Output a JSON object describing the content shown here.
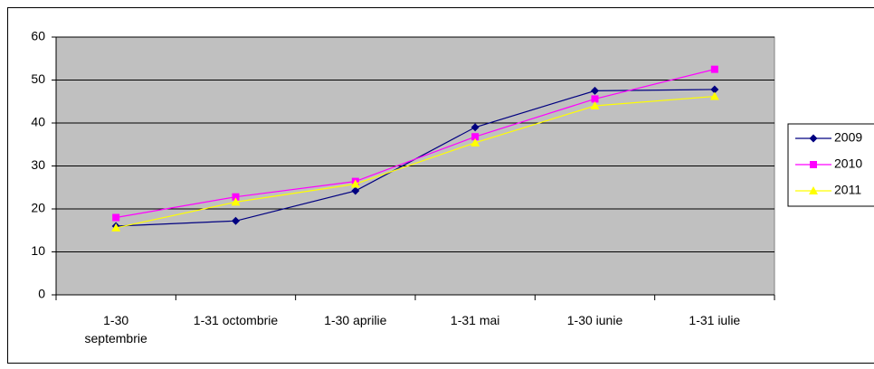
{
  "chart_data": {
    "type": "line",
    "categories": [
      "1-30 septembrie",
      "1-31 octombrie",
      "1-30 aprilie",
      "1-31 mai",
      "1-30 iunie",
      "1-31 iulie"
    ],
    "series": [
      {
        "name": "2009",
        "color": "#000080",
        "marker": "diamond",
        "values": [
          16,
          17.2,
          24.2,
          39,
          47.5,
          47.8
        ]
      },
      {
        "name": "2010",
        "color": "#ff00ff",
        "marker": "square",
        "values": [
          18,
          22.8,
          26.4,
          36.8,
          45.6,
          52.5
        ]
      },
      {
        "name": "2011",
        "color": "#ffff00",
        "marker": "triangle",
        "values": [
          15.6,
          21.6,
          25.8,
          35.4,
          44,
          46.2
        ]
      }
    ],
    "ylim": [
      0,
      60
    ],
    "yticks": [
      0,
      10,
      20,
      30,
      40,
      50,
      60
    ],
    "grid": true,
    "legend": "right"
  }
}
